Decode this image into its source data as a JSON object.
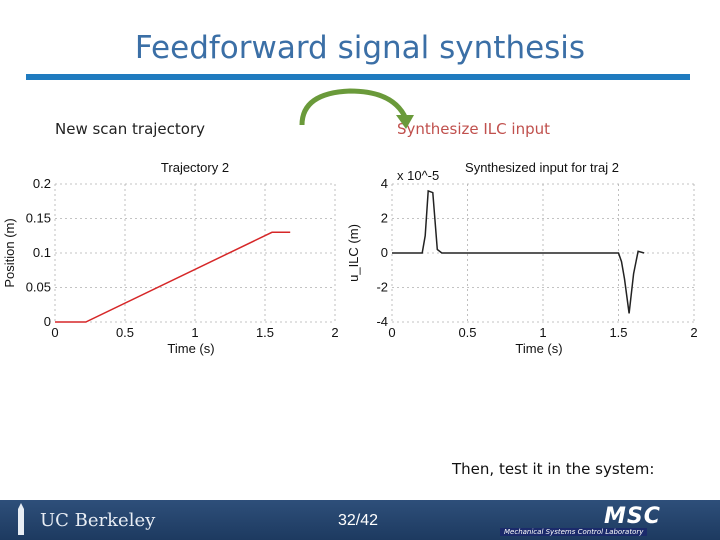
{
  "slide": {
    "title": "Feedforward signal synthesis",
    "label_left": "New scan trajectory",
    "label_right": "Synthesize ILC input",
    "footer_note": "Then, test it in the system:",
    "page": "32/42",
    "logo_text": "UC Berkeley",
    "lab_name": "Mechanical Systems Control Laboratory",
    "lab_logo": "MSC"
  },
  "colors": {
    "title": "#3b6fa6",
    "rule": "#1f7bbf",
    "arrow": "#6a9a3a",
    "trace1": "#d62728",
    "trace2": "#222222"
  },
  "chart_data": [
    {
      "type": "line",
      "title": "Trajectory 2",
      "xlabel": "Time (s)",
      "ylabel": "Position (m)",
      "xlim": [
        0,
        2
      ],
      "ylim": [
        0,
        0.2
      ],
      "xticks": [
        "0",
        "0.5",
        "1",
        "1.5",
        "2"
      ],
      "yticks": [
        "0",
        "0.05",
        "0.1",
        "0.15",
        "0.2"
      ],
      "grid": true,
      "series": [
        {
          "x": [
            0,
            0.22,
            1.55,
            1.68
          ],
          "y": [
            0,
            0,
            0.13,
            0.13
          ]
        }
      ]
    },
    {
      "type": "line",
      "title": "Synthesized input for traj 2",
      "xlabel": "Time (s)",
      "ylabel": "u_ILC (m)",
      "y_multiplier": "x 10^-5",
      "xlim": [
        0,
        2
      ],
      "ylim": [
        -4,
        4
      ],
      "xticks": [
        "0",
        "0.5",
        "1",
        "1.5",
        "2"
      ],
      "yticks": [
        "4",
        "2",
        "0",
        "-2",
        "-4"
      ],
      "grid": true,
      "series": [
        {
          "x": [
            0,
            0.2,
            0.22,
            0.24,
            0.27,
            0.3,
            0.33,
            0.4,
            1.0,
            1.5,
            1.52,
            1.54,
            1.57,
            1.6,
            1.63,
            1.67
          ],
          "y": [
            0,
            0,
            1.0,
            3.6,
            3.5,
            0.2,
            0,
            0,
            0,
            0,
            -0.5,
            -1.5,
            -3.5,
            -1.2,
            0.1,
            0
          ]
        }
      ]
    }
  ]
}
